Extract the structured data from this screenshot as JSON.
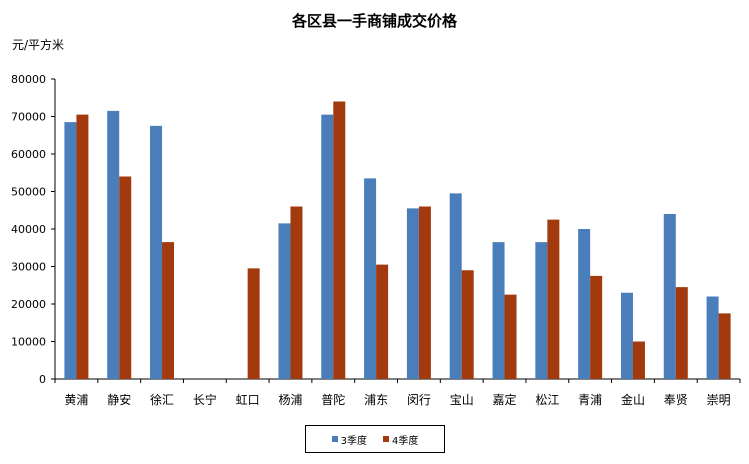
{
  "chart_data": {
    "type": "bar",
    "title": "各区县一手商铺成交价格",
    "ylabel": "元/平方米",
    "xlabel": "",
    "ylim": [
      0,
      80000
    ],
    "yticks": [
      0,
      10000,
      20000,
      30000,
      40000,
      50000,
      60000,
      70000,
      80000
    ],
    "grid": false,
    "legend_position": "bottom",
    "categories": [
      "黄浦",
      "静安",
      "徐汇",
      "长宁",
      "虹口",
      "杨浦",
      "普陀",
      "浦东",
      "闵行",
      "宝山",
      "嘉定",
      "松江",
      "青浦",
      "金山",
      "奉贤",
      "崇明"
    ],
    "series": [
      {
        "name": "3季度",
        "color": "#4a7ebb",
        "values": [
          68500,
          71500,
          67500,
          0,
          0,
          41500,
          70500,
          53500,
          45500,
          49500,
          36500,
          36500,
          40000,
          23000,
          44000,
          22000
        ]
      },
      {
        "name": "4季度",
        "color": "#a33a0e",
        "values": [
          70500,
          54000,
          36500,
          0,
          29500,
          46000,
          74000,
          30500,
          46000,
          29000,
          22500,
          42500,
          27500,
          10000,
          24500,
          17500
        ]
      }
    ]
  }
}
